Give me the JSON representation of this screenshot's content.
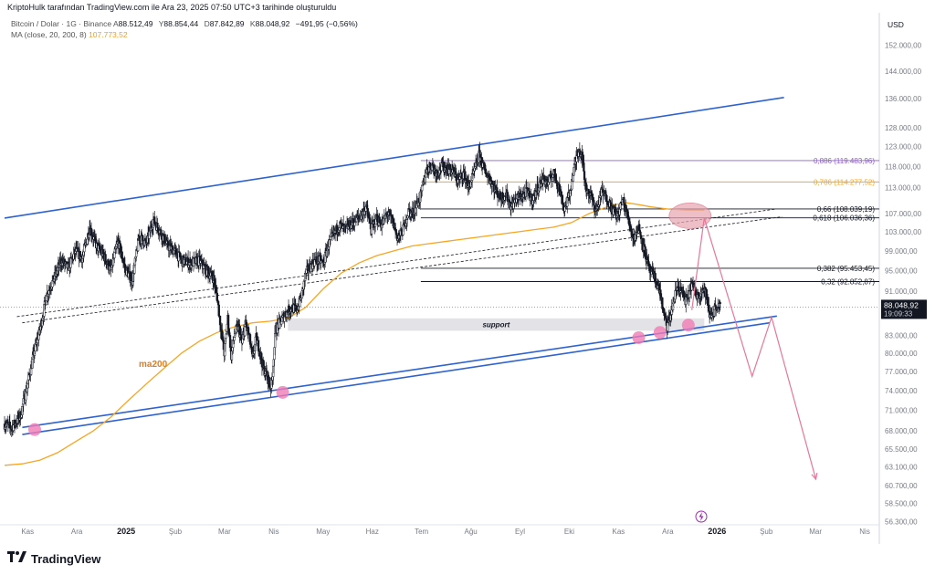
{
  "header": {
    "caption": "KriptoHulk tarafından TradingView.com ile Ara 23, 2025 07:50 UTC+3 tarihinde oluşturuldu"
  },
  "legend": {
    "symbol": "Bitcoin / Dolar · 1G · Binance",
    "open_label": "A",
    "open": "88.512,49",
    "high_label": "Y",
    "high": "88.854,44",
    "low_label": "D",
    "low": "87.842,89",
    "close_label": "K",
    "close": "88.048,92",
    "change": "−491,95 (−0,56%)",
    "ma_label": "MA (close, 20, 200, 8)",
    "ma_value": "107.773,52"
  },
  "axis": {
    "currency": "USD"
  },
  "price_tag": {
    "value": "88.048,92",
    "countdown": "19:09:33"
  },
  "annotations": {
    "support": "support",
    "ma200": "ma200"
  },
  "footer": {
    "brand": "TradingView"
  },
  "colors": {
    "channel": "#2e62d0",
    "ma": "#f5a623",
    "fib_purple": "#8e5fc7",
    "fib_orange": "#f5a623",
    "projection": "#e8769a",
    "marker": "#f07cb4",
    "candle": "#131722",
    "tag_bg": "#131722"
  },
  "chart_data": {
    "type": "candlestick",
    "symbol": "Bitcoin / Dolar · 1G · Binance",
    "x_axis_labels": [
      "Kas",
      "Ara",
      "2025",
      "Şub",
      "Mar",
      "Nis",
      "May",
      "Haz",
      "Tem",
      "Ağu",
      "Eyl",
      "Eki",
      "Kas",
      "Ara",
      "2026",
      "Şub",
      "Mar",
      "Nis"
    ],
    "y_axis_labels": [
      {
        "label": "152.000,00",
        "value": 152000
      },
      {
        "label": "144.000,00",
        "value": 144000
      },
      {
        "label": "136.000,00",
        "value": 136000
      },
      {
        "label": "128.000,00",
        "value": 128000
      },
      {
        "label": "123.000,00",
        "value": 123000
      },
      {
        "label": "118.000,00",
        "value": 118000
      },
      {
        "label": "113.000,00",
        "value": 113000
      },
      {
        "label": "107.000,00",
        "value": 107000
      },
      {
        "label": "103.000,00",
        "value": 103000
      },
      {
        "label": "99.000,00",
        "value": 99000
      },
      {
        "label": "95.000,00",
        "value": 95000
      },
      {
        "label": "91.000,00",
        "value": 91000
      },
      {
        "label": "83.000,00",
        "value": 83000
      },
      {
        "label": "80.000,00",
        "value": 80000
      },
      {
        "label": "77.000,00",
        "value": 77000
      },
      {
        "label": "74.000,00",
        "value": 74000
      },
      {
        "label": "71.000,00",
        "value": 71000
      },
      {
        "label": "68.000,00",
        "value": 68000
      },
      {
        "label": "65.500,00",
        "value": 65500
      },
      {
        "label": "63.100,00",
        "value": 63100
      },
      {
        "label": "60.700,00",
        "value": 60700
      },
      {
        "label": "58.500,00",
        "value": 58500
      },
      {
        "label": "56.300,00",
        "value": 56300
      }
    ],
    "y_scale": "log",
    "y_range": [
      55600,
      162000
    ],
    "last_price": 88048.92,
    "close_path": [
      [
        0.0,
        69000
      ],
      [
        0.4,
        68500
      ],
      [
        0.9,
        70200
      ],
      [
        1.3,
        75000
      ],
      [
        1.7,
        80500
      ],
      [
        2.0,
        84000
      ],
      [
        2.4,
        90500
      ],
      [
        2.8,
        93500
      ],
      [
        3.2,
        97000
      ],
      [
        3.6,
        95500
      ],
      [
        4.0,
        99000
      ],
      [
        4.4,
        97500
      ],
      [
        4.8,
        104000
      ],
      [
        5.2,
        100000
      ],
      [
        5.6,
        98000
      ],
      [
        6.0,
        95000
      ],
      [
        6.4,
        101000
      ],
      [
        6.8,
        95500
      ],
      [
        7.2,
        93000
      ],
      [
        7.6,
        102000
      ],
      [
        8.0,
        100500
      ],
      [
        8.4,
        105500
      ],
      [
        8.8,
        103000
      ],
      [
        9.2,
        100000
      ],
      [
        9.6,
        99000
      ],
      [
        10.0,
        97000
      ],
      [
        10.5,
        96500
      ],
      [
        11.0,
        97000
      ],
      [
        11.4,
        95000
      ],
      [
        11.8,
        93500
      ],
      [
        12.0,
        90000
      ],
      [
        12.2,
        84500
      ],
      [
        12.4,
        80000
      ],
      [
        12.6,
        86000
      ],
      [
        12.8,
        79500
      ],
      [
        13.0,
        83500
      ],
      [
        13.2,
        84500
      ],
      [
        13.4,
        81500
      ],
      [
        13.6,
        85000
      ],
      [
        13.8,
        83000
      ],
      [
        14.0,
        79000
      ],
      [
        14.2,
        82500
      ],
      [
        14.4,
        80500
      ],
      [
        14.6,
        77500
      ],
      [
        14.8,
        76500
      ],
      [
        15.0,
        74500
      ],
      [
        15.1,
        75500
      ],
      [
        15.3,
        84000
      ],
      [
        15.6,
        85500
      ],
      [
        15.9,
        87000
      ],
      [
        16.2,
        88000
      ],
      [
        16.5,
        87500
      ],
      [
        16.8,
        90500
      ],
      [
        17.0,
        94500
      ],
      [
        17.2,
        95500
      ],
      [
        17.5,
        97000
      ],
      [
        17.8,
        97000
      ],
      [
        18.0,
        96500
      ],
      [
        18.3,
        100500
      ],
      [
        18.6,
        102500
      ],
      [
        18.9,
        104500
      ],
      [
        19.2,
        103500
      ],
      [
        19.5,
        104500
      ],
      [
        19.8,
        105500
      ],
      [
        20.1,
        106500
      ],
      [
        20.4,
        108500
      ],
      [
        20.7,
        103500
      ],
      [
        21.0,
        106000
      ],
      [
        21.3,
        104500
      ],
      [
        21.6,
        107000
      ],
      [
        21.9,
        105500
      ],
      [
        22.2,
        101500
      ],
      [
        22.5,
        103500
      ],
      [
        22.8,
        107500
      ],
      [
        23.0,
        107000
      ],
      [
        23.2,
        108500
      ],
      [
        23.5,
        111000
      ],
      [
        23.8,
        117000
      ],
      [
        24.1,
        118500
      ],
      [
        24.4,
        116500
      ],
      [
        24.7,
        118000
      ],
      [
        25.0,
        117500
      ],
      [
        25.3,
        117000
      ],
      [
        25.6,
        114500
      ],
      [
        25.9,
        116500
      ],
      [
        26.2,
        113000
      ],
      [
        26.5,
        116500
      ],
      [
        26.8,
        121000
      ],
      [
        27.1,
        117000
      ],
      [
        27.4,
        115000
      ],
      [
        27.7,
        112500
      ],
      [
        28.0,
        110500
      ],
      [
        28.3,
        111500
      ],
      [
        28.6,
        108500
      ],
      [
        28.9,
        110500
      ],
      [
        29.2,
        111000
      ],
      [
        29.5,
        112000
      ],
      [
        29.8,
        110000
      ],
      [
        30.1,
        113000
      ],
      [
        30.4,
        115000
      ],
      [
        30.7,
        114000
      ],
      [
        31.0,
        116500
      ],
      [
        31.3,
        113000
      ],
      [
        31.6,
        108000
      ],
      [
        31.9,
        111500
      ],
      [
        32.2,
        118500
      ],
      [
        32.4,
        122500
      ],
      [
        32.6,
        121000
      ],
      [
        32.8,
        113000
      ],
      [
        33.1,
        111000
      ],
      [
        33.4,
        107500
      ],
      [
        33.7,
        112000
      ],
      [
        34.0,
        110500
      ],
      [
        34.3,
        108000
      ],
      [
        34.6,
        106500
      ],
      [
        34.9,
        110000
      ],
      [
        35.2,
        106000
      ],
      [
        35.5,
        101500
      ],
      [
        35.8,
        104000
      ],
      [
        36.1,
        99500
      ],
      [
        36.4,
        95000
      ],
      [
        36.7,
        93500
      ],
      [
        37.0,
        91000
      ],
      [
        37.2,
        87000
      ],
      [
        37.4,
        84500
      ],
      [
        37.6,
        86500
      ],
      [
        37.8,
        89500
      ],
      [
        38.0,
        92000
      ],
      [
        38.2,
        91000
      ],
      [
        38.5,
        89000
      ],
      [
        38.8,
        92500
      ],
      [
        39.1,
        90000
      ],
      [
        39.4,
        91500
      ],
      [
        39.6,
        90500
      ],
      [
        39.8,
        86500
      ],
      [
        40.0,
        87000
      ],
      [
        40.2,
        88500
      ],
      [
        40.4,
        88050
      ]
    ],
    "ma200_path": [
      [
        0.0,
        63300
      ],
      [
        1.0,
        63500
      ],
      [
        2.0,
        64000
      ],
      [
        3.0,
        65000
      ],
      [
        4.0,
        66500
      ],
      [
        5.0,
        68000
      ],
      [
        6.0,
        70000
      ],
      [
        7.0,
        72500
      ],
      [
        8.0,
        75000
      ],
      [
        9.0,
        77500
      ],
      [
        10.0,
        80000
      ],
      [
        11.0,
        82000
      ],
      [
        12.0,
        83500
      ],
      [
        13.0,
        84500
      ],
      [
        14.0,
        85200
      ],
      [
        15.0,
        85500
      ],
      [
        16.0,
        86000
      ],
      [
        17.0,
        88000
      ],
      [
        18.0,
        91500
      ],
      [
        19.0,
        94500
      ],
      [
        20.0,
        96500
      ],
      [
        21.0,
        98000
      ],
      [
        22.0,
        99000
      ],
      [
        23.0,
        100000
      ],
      [
        24.0,
        100500
      ],
      [
        25.0,
        101000
      ],
      [
        26.0,
        101500
      ],
      [
        27.0,
        102000
      ],
      [
        28.0,
        102500
      ],
      [
        29.0,
        103000
      ],
      [
        30.0,
        103500
      ],
      [
        31.0,
        104000
      ],
      [
        32.0,
        105000
      ],
      [
        33.0,
        107000
      ],
      [
        34.0,
        108500
      ],
      [
        35.0,
        109500
      ],
      [
        35.8,
        109000
      ],
      [
        36.5,
        108500
      ],
      [
        37.5,
        108000
      ],
      [
        38.5,
        107800
      ],
      [
        39.5,
        107773
      ]
    ],
    "upper_channel": [
      [
        0.0,
        106000
      ],
      [
        44.0,
        136300
      ]
    ],
    "lower_channel_1": [
      [
        1.0,
        68500
      ],
      [
        43.6,
        86400
      ]
    ],
    "lower_channel_2": [
      [
        1.0,
        67500
      ],
      [
        43.2,
        85200
      ]
    ],
    "dashed_line_1": [
      [
        0.7,
        86300
      ],
      [
        43.5,
        108000
      ]
    ],
    "dashed_line_2": [
      [
        1.0,
        85200
      ],
      [
        43.9,
        106300
      ]
    ],
    "support_zone": {
      "label": "support",
      "x_range": [
        16.0,
        39.5
      ],
      "y_range": [
        83800,
        86000
      ]
    },
    "fibonacci": [
      {
        "ratio": "0,886",
        "value": "119.483,96",
        "price": 119484,
        "x_from": 23.5,
        "color": "#8e5fc7"
      },
      {
        "ratio": "0,786",
        "value": "114.277,52",
        "price": 114278,
        "x_from": 23.5,
        "color": "#f5a623"
      },
      {
        "ratio": "0,66",
        "value": "108.039,19",
        "price": 108039,
        "x_from": 23.5,
        "color": "#131722"
      },
      {
        "ratio": "0,618",
        "value": "106.036,36",
        "price": 106036,
        "x_from": 23.5,
        "color": "#131722"
      },
      {
        "ratio": "0,382",
        "value": "95.453,45",
        "price": 95453,
        "x_from": 23.5,
        "color": "#131722"
      },
      {
        "ratio": "0,32",
        "value": "92.852,87",
        "price": 92853,
        "x_from": 23.5,
        "color": "#131722"
      }
    ],
    "target_ellipse": {
      "x": 38.7,
      "y": 106500
    },
    "projection_path": [
      [
        38.8,
        87500
      ],
      [
        39.5,
        106000
      ],
      [
        42.2,
        76200
      ],
      [
        43.3,
        86200
      ],
      [
        45.8,
        61500
      ]
    ],
    "markers": [
      [
        1.7,
        68200
      ],
      [
        15.7,
        73700
      ],
      [
        35.8,
        82600
      ],
      [
        37.0,
        83500
      ],
      [
        38.6,
        84800
      ]
    ]
  }
}
